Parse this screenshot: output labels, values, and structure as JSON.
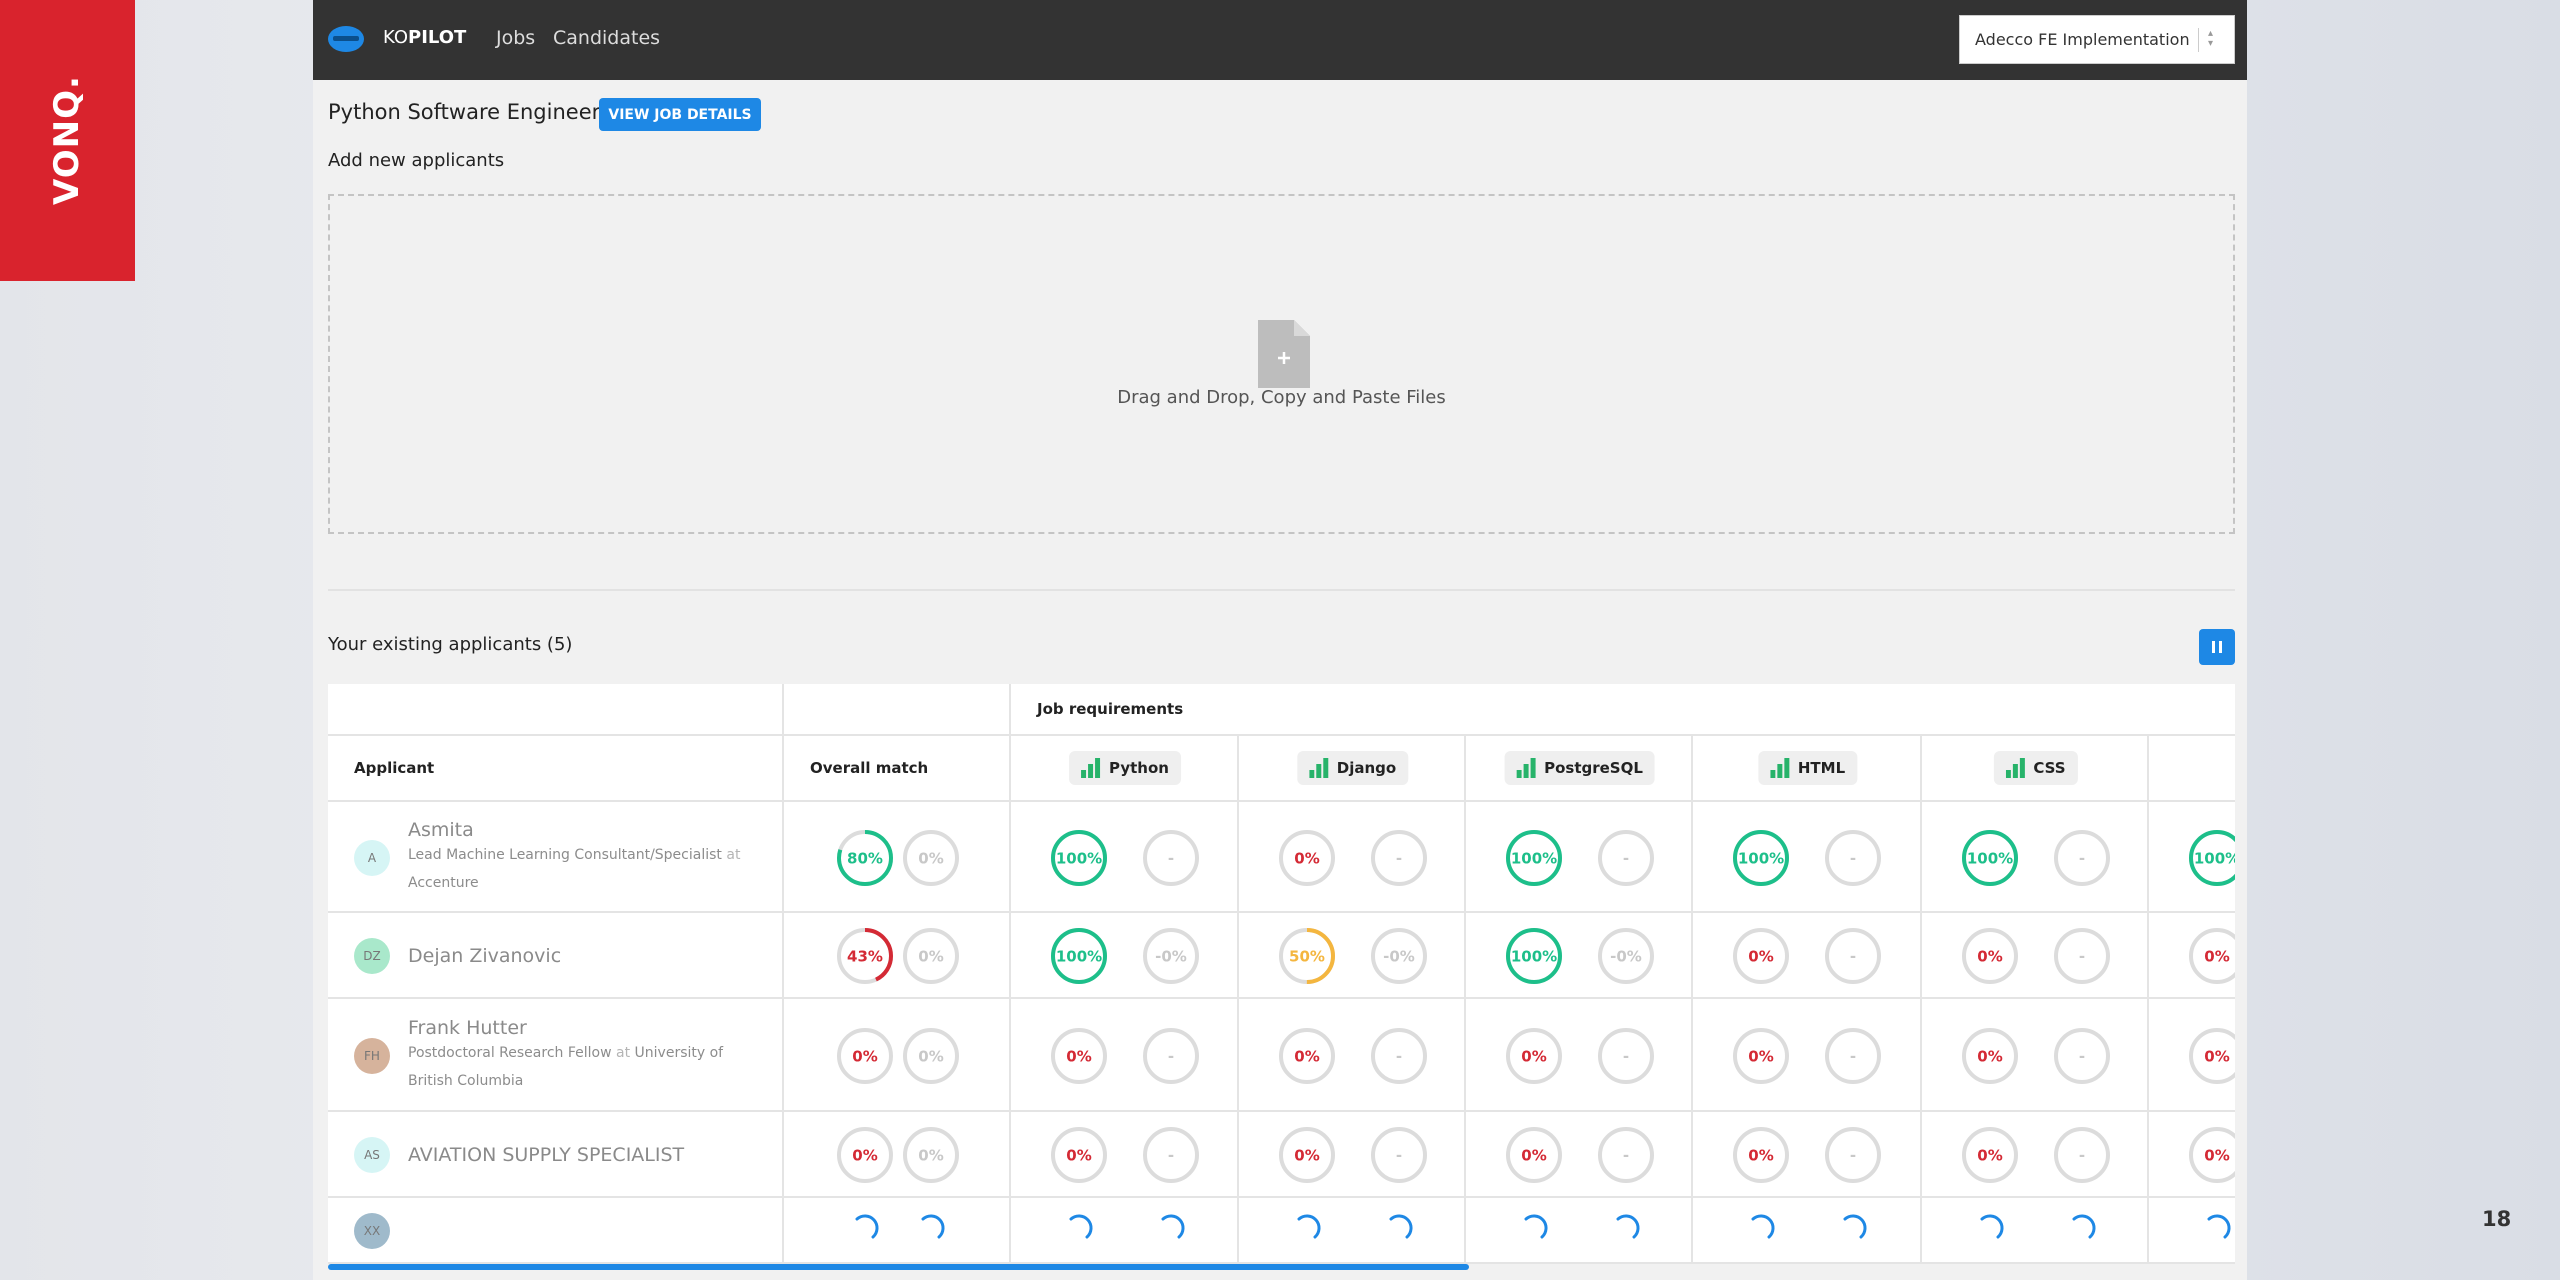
{
  "brand": "VONQ.",
  "nav": {
    "logo_light": "KO",
    "logo_bold": "PILOT",
    "links": [
      "Jobs",
      "Candidates"
    ],
    "select": "Adecco FE Implementation"
  },
  "job": {
    "title": "Python Software Engineer",
    "button": "VIEW JOB DETAILS"
  },
  "upload": {
    "heading": "Add new applicants",
    "dropzone": "Drag and Drop, Copy and Paste Files"
  },
  "applicants": {
    "heading": "Your existing applicants (5)",
    "table": {
      "group_header": "Job requirements",
      "columns": [
        "Applicant",
        "Overall match"
      ],
      "skills": [
        "Python",
        "Django",
        "PostgreSQL",
        "HTML",
        "CSS",
        null
      ],
      "rows": [
        {
          "initials": "A",
          "avatar_color": "#d6f5f5",
          "name": "Asmita",
          "role": "Lead Machine Learning Consultant/Specialist",
          "at": "at",
          "company": "Accenture",
          "overall": [
            "80%",
            "0%"
          ],
          "skills": [
            [
              "100%",
              "-"
            ],
            [
              "0%",
              "-"
            ],
            [
              "100%",
              "-"
            ],
            [
              "100%",
              "-"
            ],
            [
              "100%",
              "-"
            ],
            [
              "100%"
            ]
          ]
        },
        {
          "initials": "DZ",
          "avatar_color": "#a9e8cb",
          "name": "Dejan Zivanovic",
          "overall": [
            "43%",
            "0%"
          ],
          "skills": [
            [
              "100%",
              "-0%"
            ],
            [
              "50%",
              "-0%"
            ],
            [
              "100%",
              "-0%"
            ],
            [
              "0%",
              "-"
            ],
            [
              "0%",
              "-"
            ],
            [
              "0%"
            ]
          ]
        },
        {
          "initials": "FH",
          "avatar_color": "#d6b39c",
          "name": "Frank Hutter",
          "role": "Postdoctoral Research Fellow",
          "at": "at",
          "company": "University of British Columbia",
          "overall": [
            "0%",
            "0%"
          ],
          "skills": [
            [
              "0%",
              "-"
            ],
            [
              "0%",
              "-"
            ],
            [
              "0%",
              "-"
            ],
            [
              "0%",
              "-"
            ],
            [
              "0%",
              "-"
            ],
            [
              "0%"
            ]
          ]
        },
        {
          "initials": "AS",
          "avatar_color": "#d6f5f5",
          "name": "AVIATION SUPPLY SPECIALIST",
          "overall": [
            "0%",
            "0%"
          ],
          "skills": [
            [
              "0%",
              "-"
            ],
            [
              "0%",
              "-"
            ],
            [
              "0%",
              "-"
            ],
            [
              "0%",
              "-"
            ],
            [
              "0%",
              "-"
            ],
            [
              "0%"
            ]
          ]
        },
        {
          "initials": "XX",
          "avatar_color": "#9fbacb",
          "loading": true
        }
      ]
    }
  },
  "page_number": "18"
}
